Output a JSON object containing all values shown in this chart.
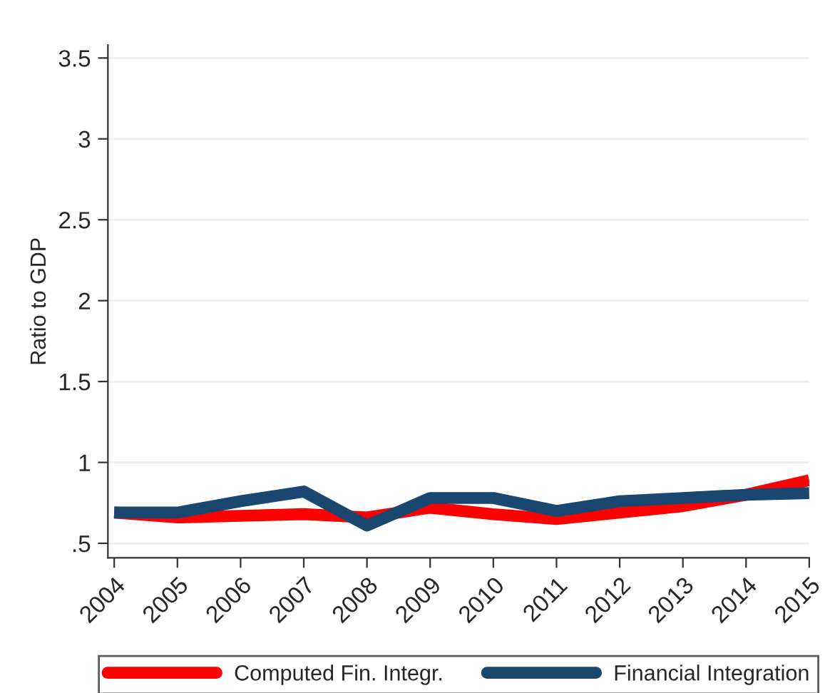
{
  "chart_data": {
    "type": "line",
    "ylabel": "Ratio to GDP",
    "categories": [
      "2004",
      "2005",
      "2006",
      "2007",
      "2008",
      "2009",
      "2010",
      "2011",
      "2012",
      "2013",
      "2014",
      "2015"
    ],
    "series": [
      {
        "name": "Computed Fin. Integr.",
        "color": "#ff0000",
        "values": [
          0.69,
          0.66,
          0.67,
          0.68,
          0.66,
          0.72,
          0.68,
          0.65,
          0.69,
          0.73,
          0.8,
          0.89
        ]
      },
      {
        "name": "Financial Integration",
        "color": "#1a476f",
        "values": [
          0.69,
          0.69,
          0.76,
          0.82,
          0.61,
          0.78,
          0.78,
          0.7,
          0.76,
          0.78,
          0.8,
          0.81
        ]
      }
    ],
    "ylim": [
      0.41,
      3.58
    ],
    "yticks": [
      {
        "value": 0.5,
        "label": ".5"
      },
      1,
      1.5,
      2,
      2.5,
      3,
      3.5
    ],
    "grid": "y",
    "legend": "bottom",
    "marker": "none",
    "line_style": "solid"
  }
}
